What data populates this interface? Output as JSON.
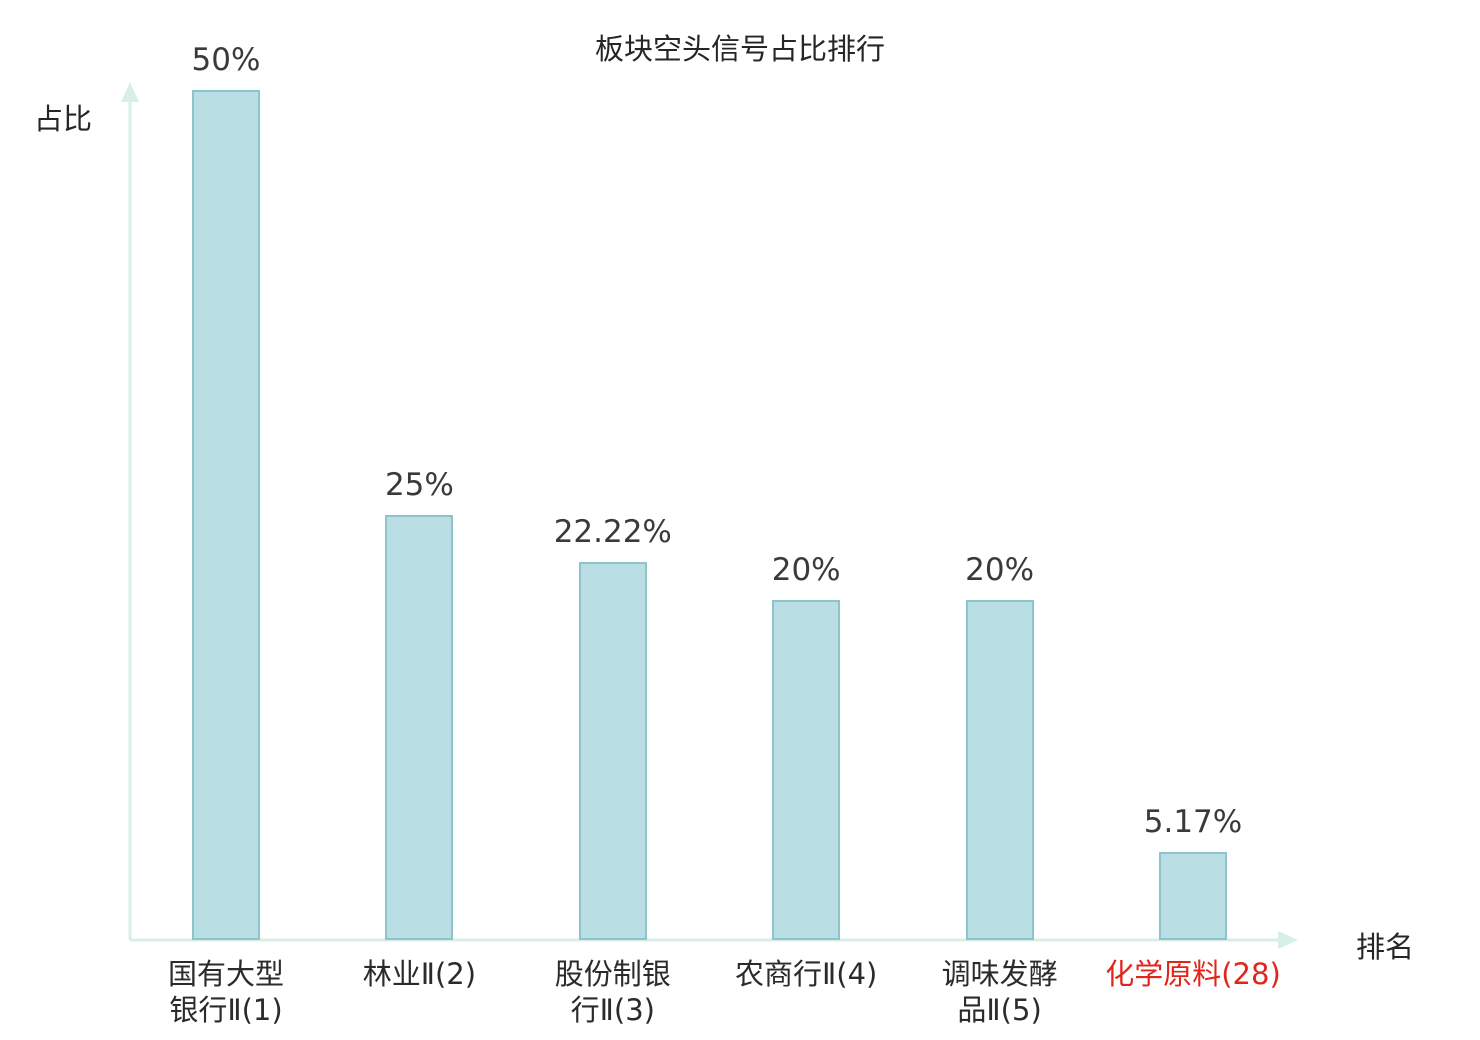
{
  "chart_data": {
    "type": "bar",
    "title": "板块空头信号占比排行",
    "ylabel": "占比",
    "xlabel": "排名",
    "ylim": [
      0,
      50
    ],
    "grid": false,
    "legend": false,
    "categories": [
      "国有大型银行Ⅱ(1)",
      "林业Ⅱ(2)",
      "股份制银行Ⅱ(3)",
      "农商行Ⅱ(4)",
      "调味发酵品Ⅱ(5)",
      "化学原料(28)"
    ],
    "category_lines": [
      [
        "国有大型",
        "银行Ⅱ(1)"
      ],
      [
        "林业Ⅱ(2)"
      ],
      [
        "股份制银",
        "行Ⅱ(3)"
      ],
      [
        "农商行Ⅱ(4)"
      ],
      [
        "调味发酵",
        "品Ⅱ(5)"
      ],
      [
        "化学原料(28)"
      ]
    ],
    "values": [
      50,
      25,
      22.22,
      20,
      20,
      5.17
    ],
    "value_labels": [
      "50%",
      "25%",
      "22.22%",
      "20%",
      "20%",
      "5.17%"
    ],
    "highlight_index": 5,
    "colors": {
      "bar_fill": "#b9dee3",
      "bar_border": "#8cc3cc",
      "axis": "#d8efe8",
      "text": "#3a3a3a",
      "category_text": "#2b2b2b",
      "highlight": "#e1251b"
    }
  }
}
